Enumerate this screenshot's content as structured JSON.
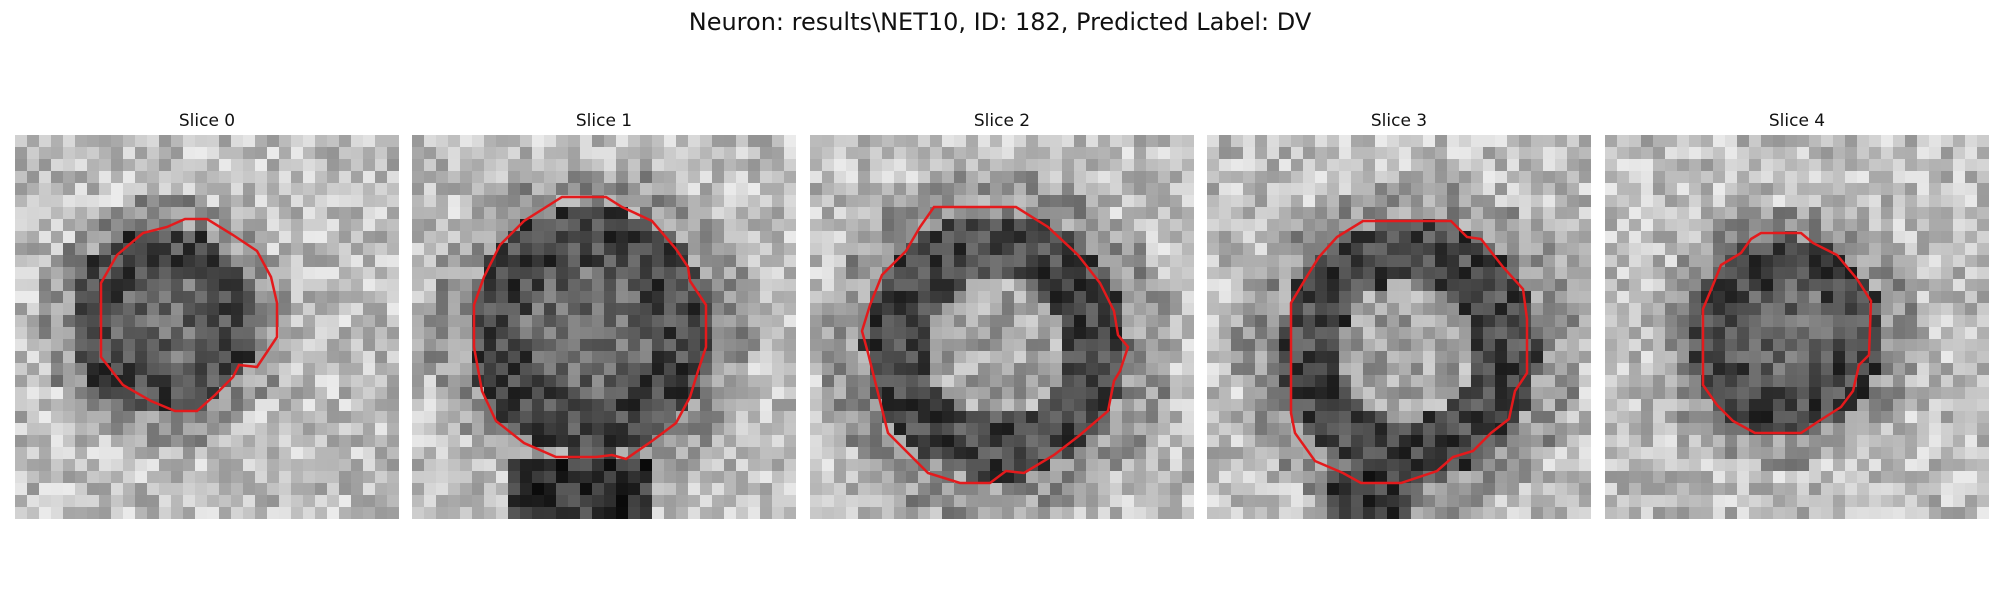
{
  "figure": {
    "title": "Neuron: results\\NET10, ID: 182, Predicted Label: DV"
  },
  "panels": [
    {
      "label": "Slice 0",
      "contour_color": "#e41a1c"
    },
    {
      "label": "Slice 1",
      "contour_color": "#e41a1c"
    },
    {
      "label": "Slice 2",
      "contour_color": "#e41a1c"
    },
    {
      "label": "Slice 3",
      "contour_color": "#e41a1c"
    },
    {
      "label": "Slice 4",
      "contour_color": "#e41a1c"
    }
  ]
}
